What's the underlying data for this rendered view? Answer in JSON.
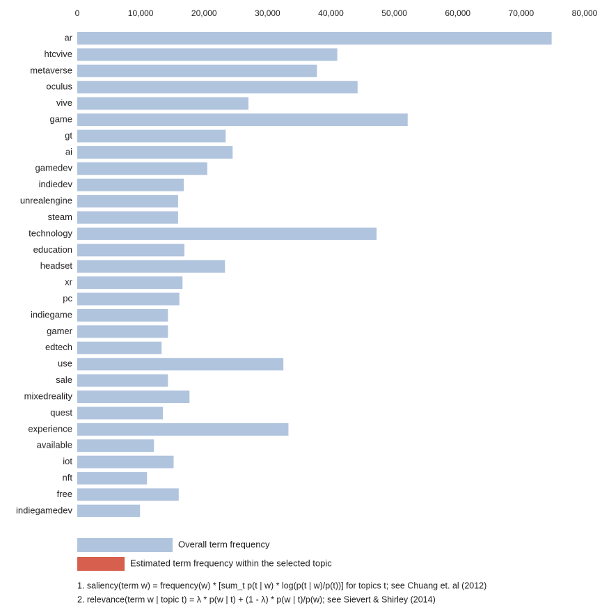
{
  "chart_data": {
    "type": "barh",
    "categories": [
      "ar",
      "htcvive",
      "metaverse",
      "oculus",
      "vive",
      "game",
      "gt",
      "ai",
      "gamedev",
      "indiedev",
      "unrealengine",
      "steam",
      "technology",
      "education",
      "headset",
      "xr",
      "pc",
      "indiegame",
      "gamer",
      "edtech",
      "use",
      "sale",
      "mixedreality",
      "quest",
      "experience",
      "available",
      "iot",
      "nft",
      "free",
      "indiegamedev"
    ],
    "values": [
      74800,
      41000,
      37800,
      44200,
      27000,
      52100,
      23400,
      24500,
      20500,
      16800,
      15900,
      15900,
      47200,
      16900,
      23300,
      16600,
      16100,
      14300,
      14300,
      13300,
      32500,
      14300,
      17700,
      13500,
      33300,
      12100,
      15200,
      11000,
      16000,
      9900
    ],
    "color": "#b0c4de",
    "xlim": [
      0,
      80000
    ],
    "xticks": [
      0,
      {
        "value": 10000,
        "label": "10,000"
      },
      {
        "value": 20000,
        "label": "20,000"
      },
      {
        "value": 30000,
        "label": "30,000"
      },
      {
        "value": 40000,
        "label": "40,000"
      },
      {
        "value": 50000,
        "label": "50,000"
      },
      {
        "value": 60000,
        "label": "60,000"
      },
      {
        "value": 70000,
        "label": "70,000"
      },
      {
        "value": 80000,
        "label": "80,000"
      }
    ],
    "legend": [
      {
        "label": "Overall term frequency",
        "color": "#b0c4de"
      },
      {
        "label": "Estimated term frequency within the selected topic",
        "color": "#d6604d"
      }
    ],
    "notes": [
      "1. saliency(term w) = frequency(w) * [sum_t p(t | w) * log(p(t | w)/p(t))] for topics t; see Chuang et. al (2012)",
      "2. relevance(term w | topic t) = λ * p(w | t) + (1 - λ) * p(w | t)/p(w); see Sievert & Shirley (2014)"
    ]
  }
}
